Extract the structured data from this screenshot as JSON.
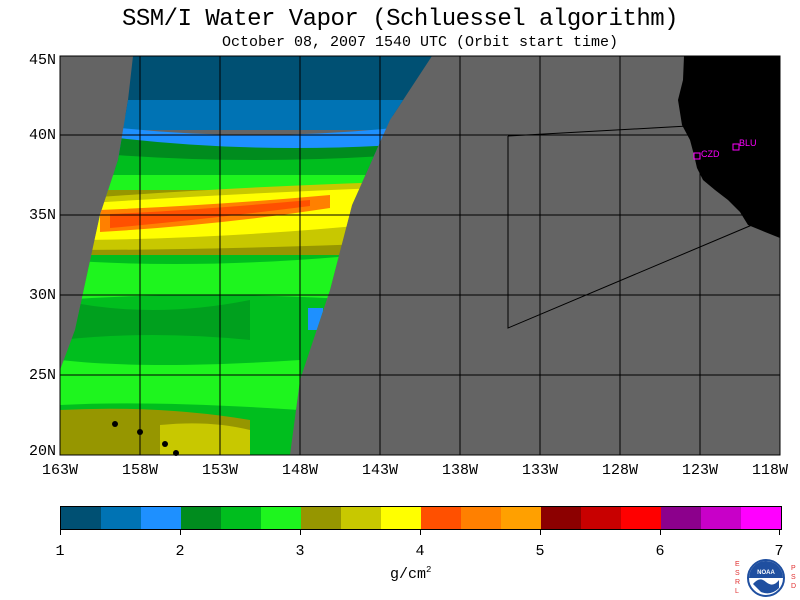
{
  "title": "SSM/I Water Vapor (Schluessel algorithm)",
  "subtitle": "October 08, 2007  1540 UTC  (Orbit start time)",
  "lat_labels": [
    "45N",
    "40N",
    "35N",
    "30N",
    "25N",
    "20N"
  ],
  "lon_labels": [
    "163W",
    "158W",
    "153W",
    "148W",
    "143W",
    "138W",
    "133W",
    "128W",
    "123W",
    "118W"
  ],
  "stations": [
    {
      "label": "CZD"
    },
    {
      "label": "BLU"
    }
  ],
  "colorbar": {
    "colors": [
      "#005073",
      "#0073b4",
      "#1e90ff",
      "#008c1e",
      "#00be1e",
      "#1ef51e",
      "#969600",
      "#c8c800",
      "#ffff00",
      "#ff5000",
      "#ff8000",
      "#ffa000",
      "#8c0000",
      "#c80000",
      "#ff0000",
      "#8c008c",
      "#c800c8",
      "#ff00ff"
    ],
    "tick_labels": [
      "1",
      "2",
      "3",
      "4",
      "5",
      "6",
      "7"
    ],
    "units_base": "g/cm",
    "units_exp": "2"
  },
  "logo": {
    "left_text": "ESRL",
    "right_text": "PSD",
    "center_text": "NOAA"
  },
  "colors": {
    "land": "#000000",
    "no_data": "#646464",
    "station": "#ff00ff"
  }
}
